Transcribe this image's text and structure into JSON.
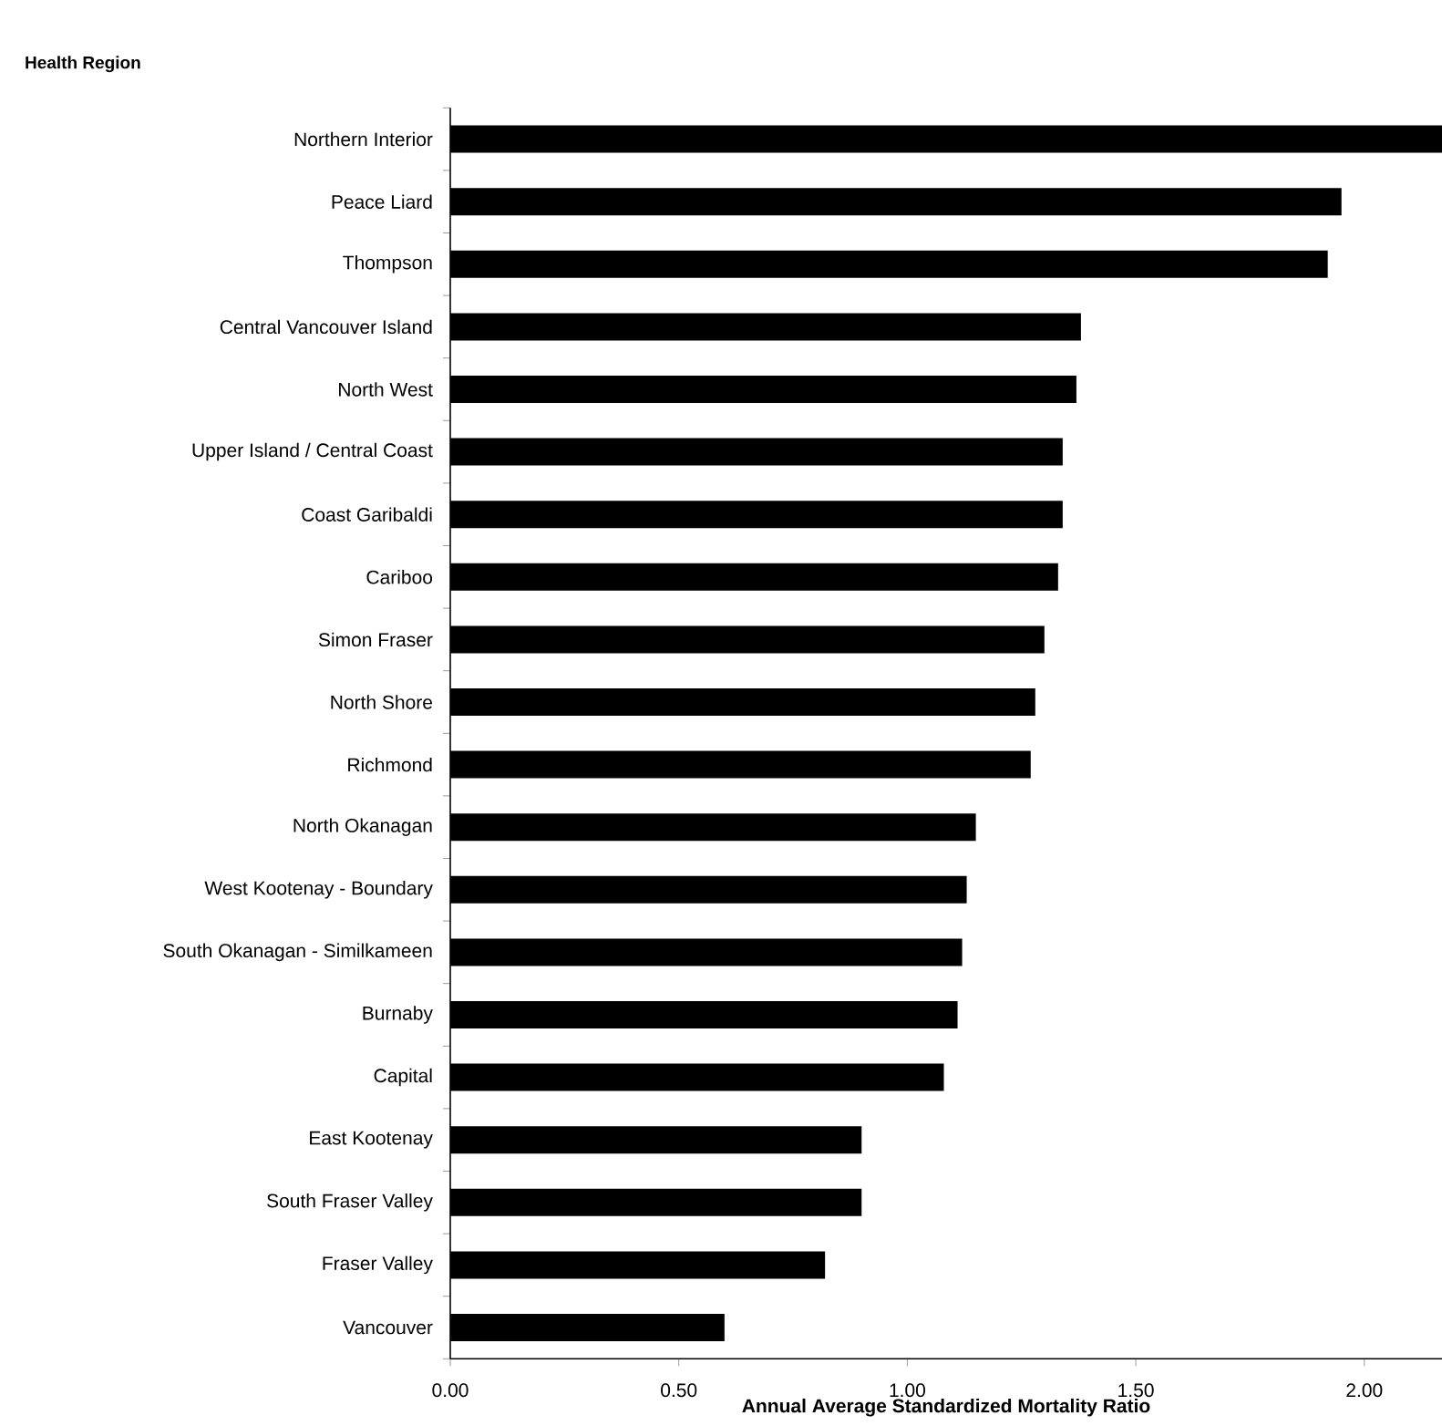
{
  "chart_data": {
    "type": "bar",
    "orientation": "horizontal",
    "ylabel": "Health Region",
    "xlabel": "Annual Average Standardized Mortality Ratio",
    "categories": [
      "Northern Interior",
      "Peace Liard",
      "Thompson",
      "Central Vancouver Island",
      "North West",
      "Upper Island / Central Coast",
      "Coast Garibaldi",
      "Cariboo",
      "Simon Fraser",
      "North Shore",
      "Richmond",
      "North Okanagan",
      "West Kootenay - Boundary",
      "South Okanagan - Similkameen",
      "Burnaby",
      "Capital",
      "East Kootenay",
      "South Fraser Valley",
      "Fraser Valley",
      "Vancouver"
    ],
    "values": [
      2.17,
      1.95,
      1.92,
      1.38,
      1.37,
      1.34,
      1.34,
      1.33,
      1.3,
      1.28,
      1.27,
      1.15,
      1.13,
      1.12,
      1.11,
      1.08,
      0.9,
      0.9,
      0.82,
      0.6
    ],
    "color": "#000000",
    "xlim": [
      0,
      2.17
    ],
    "xticks": [
      {
        "value": 0,
        "label": "0.00"
      },
      {
        "value": 0.5,
        "label": "0.50"
      },
      {
        "value": 1,
        "label": "1.00"
      },
      {
        "value": 1.5,
        "label": "1.50"
      },
      {
        "value": 2,
        "label": "2.00"
      }
    ],
    "grid": false
  }
}
